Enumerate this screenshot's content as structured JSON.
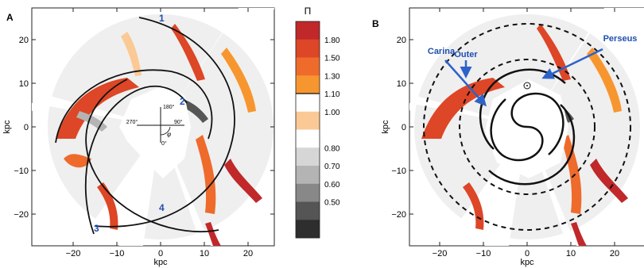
{
  "panel_a": {
    "letter": "A",
    "xlabel": "kpc",
    "ylabel": "kpc",
    "x_ticks": [
      -20,
      -10,
      0,
      10,
      20
    ],
    "y_ticks": [
      20,
      10,
      0,
      -10,
      -20
    ],
    "x_tick_labels": [
      "−20",
      "−10",
      "0",
      "10",
      "20"
    ],
    "y_tick_labels": [
      "20",
      "10",
      "0",
      "−10",
      "−20"
    ],
    "compass": {
      "top": "180°",
      "left": "270°",
      "right": "90°",
      "bottom": "0°",
      "angle": "φ"
    },
    "arm_numbers": [
      "1",
      "2",
      "3",
      "4"
    ]
  },
  "colorbar": {
    "title": "Π",
    "labels": [
      "1.80",
      "1.50",
      "1.30",
      "1.10",
      "1.00",
      "0.80",
      "0.70",
      "0.60",
      "0.50"
    ],
    "colors": [
      "#c0282a",
      "#dd4626",
      "#ee6b2c",
      "#f7962f",
      "#ffffff",
      "#fbc995",
      "#ffffff",
      "#d6d6d6",
      "#b4b4b4",
      "#888888",
      "#555555",
      "#2e2e2e"
    ]
  },
  "panel_b": {
    "letter": "B",
    "xlabel": "kpc",
    "ylabel": "kpc",
    "x_ticks": [
      -20,
      -10,
      0,
      10,
      20
    ],
    "y_ticks": [
      20,
      10,
      0,
      -10,
      -20
    ],
    "x_tick_labels": [
      "−20",
      "−10",
      "0",
      "10",
      "20"
    ],
    "y_tick_labels": [
      "20",
      "10",
      "0",
      "−10",
      "−20"
    ],
    "annotations": [
      "Outer",
      "Perseus",
      "Carina"
    ]
  },
  "colors": {
    "arm_label": "#1f4fb0",
    "arrow": "#2d63c8"
  }
}
